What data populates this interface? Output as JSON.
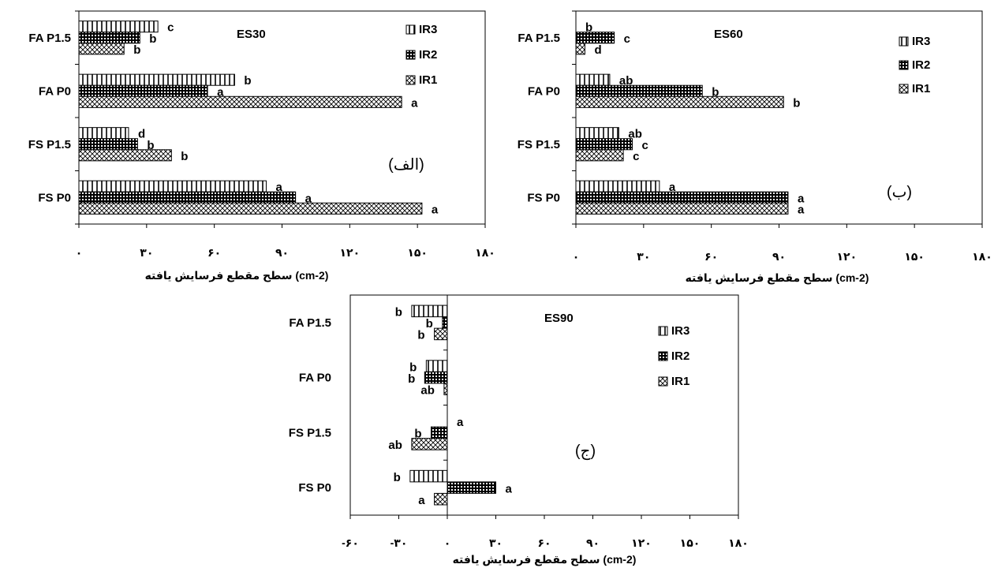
{
  "chart_data": [
    {
      "type": "bar",
      "orientation": "horizontal",
      "title": "ES30",
      "panel_label": "(الف)",
      "xlabel": "سطح مقطع فرسایش یافته (cm-2)",
      "xlim": [
        0,
        180
      ],
      "xticks": [
        "۰",
        "۳۰",
        "۶۰",
        "۹۰",
        "۱۲۰",
        "۱۵۰",
        "۱۸۰"
      ],
      "categories": [
        "FA P1.5",
        "FA P0",
        "FS P1.5",
        "FS P0"
      ],
      "legend_position": "top-right",
      "series": [
        {
          "name": "IR3",
          "values": [
            35,
            69,
            22,
            83
          ],
          "letters": [
            "c",
            "b",
            "d",
            "a"
          ]
        },
        {
          "name": "IR2",
          "values": [
            27,
            57,
            26,
            96
          ],
          "letters": [
            "b",
            "a",
            "b",
            "a"
          ]
        },
        {
          "name": "IR1",
          "values": [
            20,
            143,
            41,
            152
          ],
          "letters": [
            "b",
            "a",
            "b",
            "a"
          ]
        }
      ]
    },
    {
      "type": "bar",
      "orientation": "horizontal",
      "title": "ES60",
      "panel_label": "(ب)",
      "xlabel": "سطح مقطع فرسایش یافته (cm-2)",
      "xlim": [
        0,
        180
      ],
      "xticks": [
        "۰",
        "۳۰",
        "۶۰",
        "۹۰",
        "۱۲۰",
        "۱۵۰",
        "۱۸۰"
      ],
      "categories": [
        "FA P1.5",
        "FA P0",
        "FS P1.5",
        "FS P0"
      ],
      "legend_position": "top-right",
      "series": [
        {
          "name": "IR3",
          "values": [
            0,
            15,
            19,
            37
          ],
          "letters": [
            "b",
            "ab",
            "ab",
            "a"
          ]
        },
        {
          "name": "IR2",
          "values": [
            17,
            56,
            25,
            94
          ],
          "letters": [
            "c",
            "b",
            "c",
            "a"
          ]
        },
        {
          "name": "IR1",
          "values": [
            4,
            92,
            21,
            94
          ],
          "letters": [
            "d",
            "b",
            "c",
            "a"
          ]
        }
      ]
    },
    {
      "type": "bar",
      "orientation": "horizontal",
      "title": "ES90",
      "panel_label": "(ج)",
      "xlabel": "سطح مقطع فرسایش یافته (cm-2)",
      "xlim": [
        -60,
        180
      ],
      "xticks": [
        "-۶۰",
        "-۳۰",
        "۰",
        "۳۰",
        "۶۰",
        "۹۰",
        "۱۲۰",
        "۱۵۰",
        "۱۸۰"
      ],
      "categories": [
        "FA P1.5",
        "FA P0",
        "FS P1.5",
        "FS P0"
      ],
      "legend_position": "top-right",
      "series": [
        {
          "name": "IR3",
          "values": [
            -22,
            -13,
            0,
            -23
          ],
          "letters": [
            "b",
            "b",
            "a",
            "b"
          ]
        },
        {
          "name": "IR2",
          "values": [
            -3,
            -14,
            -10,
            30
          ],
          "letters": [
            "b",
            "b",
            "b",
            "a"
          ]
        },
        {
          "name": "IR1",
          "values": [
            -8,
            -2,
            -22,
            -8
          ],
          "letters": [
            "b",
            "ab",
            "ab",
            "a"
          ]
        }
      ]
    }
  ]
}
